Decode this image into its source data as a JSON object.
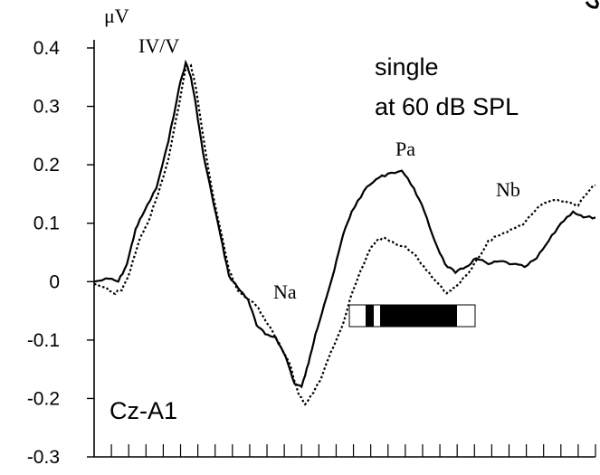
{
  "chart_data": {
    "type": "line",
    "title": "",
    "ylabel": "μV",
    "xlabel": "",
    "ylim": [
      -0.3,
      0.4
    ],
    "y_ticks": [
      {
        "value": 0.4,
        "label": "0.4"
      },
      {
        "value": 0.3,
        "label": "0.3"
      },
      {
        "value": 0.2,
        "label": "0.2"
      },
      {
        "value": 0.1,
        "label": "0.1"
      },
      {
        "value": 0.0,
        "label": "0"
      },
      {
        "value": -0.1,
        "label": "-0.1"
      },
      {
        "value": -0.2,
        "label": "-0.2"
      },
      {
        "value": -0.3,
        "label": "-0.3"
      }
    ],
    "x_tick_count": 29,
    "x_range": [
      0,
      29
    ],
    "grid": false,
    "series": [
      {
        "style": "solid",
        "color": "#000000",
        "x": [
          0,
          0.9,
          1.4,
          1.9,
          2.4,
          2.9,
          3.6,
          4.3,
          4.9,
          5.3,
          5.6,
          5.9,
          6.3,
          6.8,
          7.3,
          7.8,
          8.3,
          8.9,
          9.4,
          9.9,
          10.5,
          11.1,
          11.6,
          12.0,
          12.4,
          12.8,
          13.3,
          13.9,
          14.4,
          14.9,
          15.6,
          16.3,
          17.0,
          17.8,
          18.5,
          19.1,
          19.7,
          20.3,
          20.9,
          21.5,
          22.1,
          22.8,
          23.5,
          24.2,
          24.9,
          25.6,
          26.3,
          27.0,
          27.7,
          28.3,
          29.0
        ],
        "y": [
          0.0,
          0.005,
          0.0,
          0.03,
          0.09,
          0.12,
          0.16,
          0.24,
          0.33,
          0.375,
          0.35,
          0.3,
          0.22,
          0.15,
          0.08,
          0.01,
          -0.01,
          -0.03,
          -0.075,
          -0.09,
          -0.095,
          -0.13,
          -0.175,
          -0.18,
          -0.14,
          -0.09,
          -0.04,
          0.02,
          0.08,
          0.12,
          0.155,
          0.175,
          0.185,
          0.19,
          0.16,
          0.12,
          0.07,
          0.03,
          0.015,
          0.025,
          0.04,
          0.03,
          0.035,
          0.03,
          0.025,
          0.04,
          0.07,
          0.1,
          0.12,
          0.11,
          0.11
        ]
      },
      {
        "style": "dotted",
        "color": "#000000",
        "x": [
          0,
          0.6,
          1.1,
          1.6,
          2.1,
          2.6,
          3.1,
          3.7,
          4.3,
          4.9,
          5.3,
          5.6,
          5.9,
          6.3,
          6.8,
          7.3,
          7.8,
          8.3,
          8.9,
          9.5,
          10.1,
          10.7,
          11.3,
          11.8,
          12.2,
          12.7,
          13.2,
          13.7,
          14.3,
          14.8,
          15.3,
          15.8,
          16.3,
          16.8,
          17.4,
          18.0,
          18.6,
          19.2,
          19.8,
          20.4,
          20.9,
          21.5,
          22.2,
          22.8,
          23.5,
          24.2,
          24.9,
          25.6,
          26.2,
          26.8,
          27.4,
          28.0,
          28.6,
          29.0
        ],
        "y": [
          -0.005,
          -0.01,
          -0.02,
          -0.015,
          0.02,
          0.07,
          0.1,
          0.15,
          0.21,
          0.3,
          0.365,
          0.37,
          0.33,
          0.25,
          0.16,
          0.09,
          0.02,
          -0.015,
          -0.03,
          -0.045,
          -0.075,
          -0.105,
          -0.14,
          -0.19,
          -0.21,
          -0.19,
          -0.16,
          -0.12,
          -0.08,
          -0.03,
          0.01,
          0.045,
          0.07,
          0.075,
          0.065,
          0.06,
          0.045,
          0.02,
          0.0,
          -0.02,
          -0.01,
          0.01,
          0.04,
          0.07,
          0.08,
          0.09,
          0.1,
          0.125,
          0.135,
          0.14,
          0.135,
          0.13,
          0.155,
          0.165
        ]
      }
    ],
    "annotations": {
      "peak_iv_v": "IV/V",
      "na": "Na",
      "pa": "Pa",
      "nb": "Nb",
      "condition_line1": "single",
      "condition_line2": "at 60 dB SPL",
      "montage": "Cz-A1"
    }
  }
}
